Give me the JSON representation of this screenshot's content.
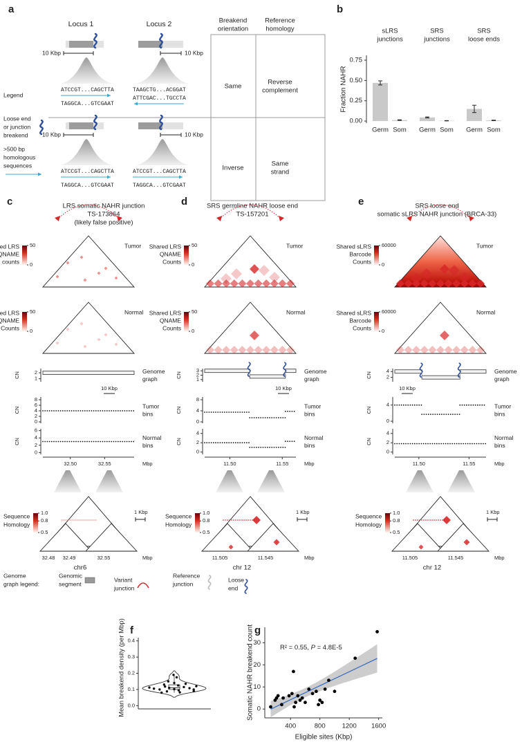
{
  "panel_a": {
    "letter": "a",
    "locus_headers": [
      "Locus 1",
      "Locus 2"
    ],
    "table_headers": [
      [
        "Breakend",
        "orientation"
      ],
      [
        "Reference",
        "homology"
      ]
    ],
    "legend": {
      "title": "Legend",
      "breakend": [
        "Loose end",
        "or junction",
        "breakend"
      ],
      "homologous": [
        ">500 bp",
        "homologous",
        "sequences"
      ]
    },
    "rows": [
      {
        "scale_bars": [
          "10 Kbp",
          "10 Kbp"
        ],
        "locus1": [
          "ATCCGT...CAGCTTA",
          "TAGGCA...GTCGAAT"
        ],
        "locus2": [
          "TAAGCTG...ACGGAT",
          "ATTCGAC...TGCCTA"
        ],
        "orientation": "Same",
        "homology": [
          "Reverse",
          "complement"
        ]
      },
      {
        "scale_bars": [
          "10 Kbp",
          "10 Kbp"
        ],
        "locus1": [
          "ATCCGT...CAGCTTA",
          "TAGGCA...GTCGAAT"
        ],
        "locus2": [
          "ATCCGT...CAGCTTA",
          "TAGGCA...GTCGAAT"
        ],
        "orientation": "Inverse",
        "homology": [
          "Same",
          "strand"
        ]
      }
    ]
  },
  "panels_cde": [
    {
      "letter": "c",
      "title": [
        "LRS somatic NAHR junction",
        "TS-173864",
        "(likely false positive)"
      ],
      "tumor_map": {
        "label": [
          "Shared LRS",
          "QNAME",
          "counts"
        ],
        "ticks": [
          50,
          0
        ],
        "tag": "Tumor"
      },
      "normal_map": {
        "label": [
          "Shared LRS",
          "QNAME",
          "Counts"
        ],
        "ticks": [
          50,
          0
        ],
        "tag": "Normal"
      },
      "xlim": [
        32.46,
        32.593
      ],
      "xticks": [
        {
          "value": 32.5,
          "label": "32.50"
        },
        {
          "value": 32.55,
          "label": "32.55"
        }
      ],
      "x_unit": "Mbp",
      "scale_bar": "10 Kbp",
      "tracks": [
        {
          "axis_label": "CN",
          "name": [
            "Genome",
            "graph"
          ],
          "ylim": [
            0.5,
            2.7
          ],
          "yticks": [
            1,
            2
          ],
          "segments": [
            {
              "start": 32.46,
              "end": 32.593,
              "cn": 2
            }
          ]
        },
        {
          "axis_label": "CN",
          "name": [
            "Tumor",
            "bins"
          ],
          "ylim": [
            -0.5,
            9
          ],
          "yticks": [
            0,
            2,
            4,
            6,
            8
          ],
          "segments": [
            {
              "start": 32.46,
              "end": 32.593,
              "cn": 4
            }
          ]
        },
        {
          "axis_label": "CN",
          "name": [
            "Normal",
            "bins"
          ],
          "ylim": [
            -0.5,
            6.5
          ],
          "yticks": [
            0,
            2,
            4,
            6
          ],
          "segments": [
            {
              "start": 32.46,
              "end": 32.593,
              "cn": 3
            }
          ]
        }
      ],
      "homology": {
        "label": [
          "Sequence",
          "Homology"
        ],
        "ticks": [
          {
            "value": 1,
            "label": "1.0"
          },
          {
            "value": 0.8,
            "label": "0.8"
          },
          0.5
        ],
        "scale_bar": "1 Kbp",
        "xticks": [
          "32.48",
          "32.49",
          "32.55"
        ],
        "x_unit": "Mbp",
        "chrom": "chr6"
      }
    },
    {
      "letter": "d",
      "title": [
        "SRS germline NAHR loose end",
        "TS-157201"
      ],
      "tumor_map": {
        "label": [
          "Shared LRS",
          "QNAME",
          "Counts"
        ],
        "ticks": [
          50,
          0
        ],
        "tag": "Tumor"
      },
      "normal_map": {
        "label": [
          "Shared LRS",
          "QNAME",
          "Counts"
        ],
        "ticks": [
          50,
          0
        ],
        "tag": "Normal"
      },
      "xlim": [
        11.476,
        11.563
      ],
      "xticks": [
        {
          "value": 11.5,
          "label": "11.50"
        },
        {
          "value": 11.55,
          "label": "11.55"
        }
      ],
      "x_unit": "Mbp",
      "scale_bar": "10 Kbp",
      "tracks": [
        {
          "axis_label": "CN",
          "name": [
            "Genome",
            "graph"
          ],
          "ylim": [
            0.5,
            3.5
          ],
          "yticks": [
            1,
            2,
            3
          ],
          "segments": [
            {
              "start": 11.476,
              "end": 11.519,
              "cn": 3
            },
            {
              "start": 11.519,
              "end": 11.553,
              "cn": 1.7
            },
            {
              "start": 11.553,
              "end": 11.563,
              "cn": 3
            }
          ]
        },
        {
          "axis_label": "CN",
          "name": [
            "Tumor",
            "bins"
          ],
          "ylim": [
            -0.5,
            9
          ],
          "yticks": [
            0,
            4,
            8
          ],
          "segments": [
            {
              "start": 11.476,
              "end": 11.519,
              "cn": 3.5
            },
            {
              "start": 11.519,
              "end": 11.553,
              "cn": 1.5
            },
            {
              "start": 11.553,
              "end": 11.563,
              "cn": 3.8
            }
          ]
        },
        {
          "axis_label": "CN",
          "name": [
            "Normal",
            "bins"
          ],
          "ylim": [
            -0.5,
            5
          ],
          "yticks": [
            0,
            2,
            4
          ],
          "segments": [
            {
              "start": 11.476,
              "end": 11.519,
              "cn": 2
            },
            {
              "start": 11.519,
              "end": 11.553,
              "cn": 1
            },
            {
              "start": 11.553,
              "end": 11.563,
              "cn": 2.3
            }
          ]
        }
      ],
      "homology": {
        "label": [
          "Sequence",
          "Homology"
        ],
        "ticks": [
          {
            "value": 1,
            "label": "1.0"
          },
          {
            "value": 0.8,
            "label": "0.8"
          },
          0.5
        ],
        "scale_bar": "1 Kbp",
        "xticks": [
          "11.505",
          "11.545"
        ],
        "x_unit": "Mbp",
        "chrom": "chr 12"
      }
    },
    {
      "letter": "e",
      "title": [
        "SRS loose end",
        "somatic sLRS NAHR junction (BRCA-33)"
      ],
      "tumor_map": {
        "label": [
          "Shared sLRS",
          "Barcode",
          "Counts"
        ],
        "ticks": [
          60000,
          0
        ],
        "tag": "Tumor"
      },
      "normal_map": {
        "label": [
          "Shared sLRS",
          "Barcode",
          "Counts"
        ],
        "ticks": [
          60000,
          0
        ],
        "tag": "Normal"
      },
      "xlim": [
        11.476,
        11.567
      ],
      "xticks": [
        {
          "value": 11.5,
          "label": "11.50"
        },
        {
          "value": 11.55,
          "label": "11.55"
        }
      ],
      "x_unit": "Mbp",
      "scale_bar": "10 Kbp",
      "tracks": [
        {
          "axis_label": "CN",
          "name": [
            "Genome",
            "graph"
          ],
          "ylim": [
            0.5,
            5
          ],
          "yticks": [
            2,
            4
          ],
          "segments": [
            {
              "start": 11.476,
              "end": 11.503,
              "cn": 4
            },
            {
              "start": 11.503,
              "end": 11.541,
              "cn": 2
            },
            {
              "start": 11.541,
              "end": 11.567,
              "cn": 4
            }
          ]
        },
        {
          "axis_label": "CN",
          "name": [
            "Tumor",
            "bins"
          ],
          "ylim": [
            -0.5,
            6
          ],
          "yticks": [
            0,
            4
          ],
          "segments": [
            {
              "start": 11.476,
              "end": 11.503,
              "cn": 4
            },
            {
              "start": 11.503,
              "end": 11.541,
              "cn": 1.7
            },
            {
              "start": 11.541,
              "end": 11.567,
              "cn": 4
            }
          ]
        },
        {
          "axis_label": "CN",
          "name": [
            "Normal",
            "bins"
          ],
          "ylim": [
            -0.5,
            5
          ],
          "yticks": [
            0,
            2,
            4
          ],
          "segments": [
            {
              "start": 11.476,
              "end": 11.567,
              "cn": 1.8
            }
          ]
        }
      ],
      "homology": {
        "label": [
          "Sequence",
          "Homology"
        ],
        "ticks": [
          {
            "value": 1,
            "label": "1.0"
          },
          {
            "value": 0.8,
            "label": "0.8"
          },
          0.5
        ],
        "scale_bar": "1 Kbp",
        "xticks": [
          "11.505",
          "11.545"
        ],
        "x_unit": "Mbp",
        "chrom": "chr 12"
      }
    }
  ],
  "graph_legend": {
    "title": [
      "Genome",
      "graph legend:"
    ],
    "items": [
      [
        "Genomic",
        "segment"
      ],
      [
        "Variant",
        "junction"
      ],
      [
        "Reference",
        "junction"
      ],
      [
        "Loose",
        "end"
      ]
    ]
  },
  "chart_data": [
    {
      "type": "bar",
      "letter": "b",
      "ylabel": "Fraction NAHR",
      "color": "#c9c9c9",
      "ylim": [
        -0.025,
        0.81
      ],
      "yticks": [
        {
          "value": 0,
          "label": "0.00"
        },
        {
          "value": 0.25,
          "label": "0.25"
        },
        {
          "value": 0.5,
          "label": "0.50"
        },
        {
          "value": 0.75,
          "label": "0.75"
        }
      ],
      "facets": [
        {
          "title": [
            "sLRS",
            "junctions"
          ],
          "categories": [
            "Germ",
            "Som"
          ],
          "values": [
            0.47,
            0.012
          ],
          "errors": [
            0.025,
            0.004
          ]
        },
        {
          "title": [
            "SRS",
            "junctions"
          ],
          "categories": [
            "Germ",
            "Som"
          ],
          "values": [
            0.045,
            0.004
          ],
          "errors": [
            0.006,
            0.002
          ]
        },
        {
          "title": [
            "SRS",
            "loose ends"
          ],
          "categories": [
            "Germ",
            "Som"
          ],
          "values": [
            0.15,
            0.008
          ],
          "errors": [
            0.045,
            0.003
          ]
        }
      ]
    },
    {
      "type": "violin",
      "letter": "f",
      "ylabel": "Mean breakend density (per Mbp)",
      "color": "#ffffff",
      "ylim": [
        -0.02,
        0.42
      ],
      "yticks": [
        {
          "value": 0,
          "label": "0.0"
        },
        {
          "value": 0.1,
          "label": "0.1"
        },
        {
          "value": 0.2,
          "label": "0.2"
        },
        {
          "value": 0.3,
          "label": "0.3"
        },
        {
          "value": 0.4,
          "label": "0.4"
        }
      ],
      "values": [
        0.08,
        0.082,
        0.088,
        0.09,
        0.095,
        0.1,
        0.1,
        0.102,
        0.105,
        0.108,
        0.11,
        0.112,
        0.115,
        0.118,
        0.12,
        0.125,
        0.13,
        0.135,
        0.14,
        0.15,
        0.175,
        0.19
      ]
    },
    {
      "type": "scatter",
      "letter": "g",
      "xlabel": "Eligible sites (Kbp)",
      "ylabel": "Somatic NAHR breakend count",
      "annotation": [
        "R² = 0.55, ",
        "P",
        " = 4.8E-5"
      ],
      "x": [
        130,
        190,
        210,
        230,
        280,
        300,
        380,
        420,
        440,
        450,
        470,
        500,
        530,
        560,
        600,
        650,
        700,
        750,
        780,
        800,
        830,
        870,
        920,
        1000,
        1280,
        1580
      ],
      "values": [
        1,
        4,
        5,
        6,
        2,
        5,
        6,
        7,
        17,
        1,
        3,
        6,
        4,
        5,
        3,
        9,
        7,
        8,
        2,
        4,
        3,
        9,
        13,
        8,
        23,
        35
      ],
      "xlim": [
        50,
        1650
      ],
      "xticks": [
        400,
        800,
        1200,
        1600
      ],
      "ylim": [
        -4,
        37
      ],
      "yticks": [
        0,
        10,
        20,
        30
      ],
      "color": "#000000",
      "fit_color": "#3b6fc0",
      "band_color": "#c4c4c4"
    }
  ]
}
